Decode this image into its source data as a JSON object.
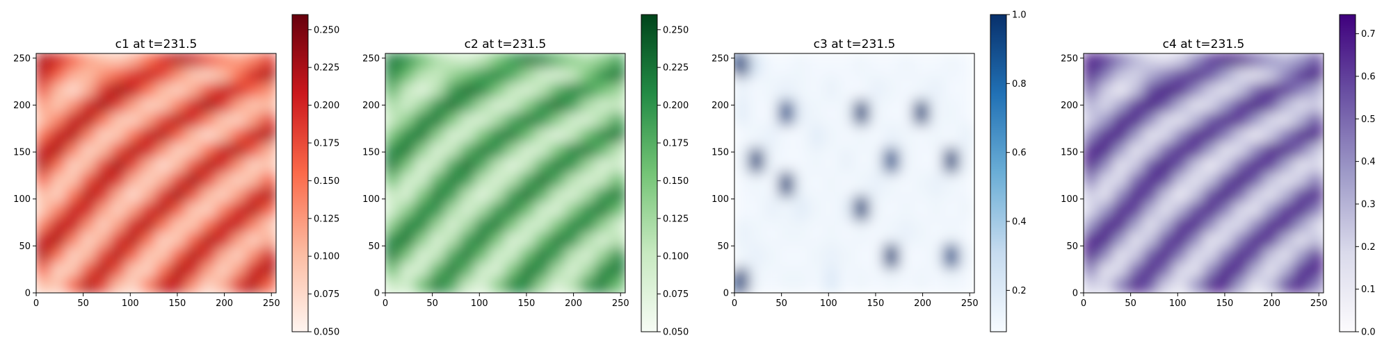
{
  "chart_data": [
    {
      "type": "heatmap",
      "title": "c1 at t=231.5",
      "colormap": "Reds",
      "colors": [
        "#fff5f0",
        "#fcbba1",
        "#fb6a4a",
        "#cb181d",
        "#67000d"
      ],
      "xlim": [
        0,
        255
      ],
      "ylim": [
        0,
        255
      ],
      "x_ticks": [
        0,
        50,
        100,
        150,
        200,
        250
      ],
      "y_ticks": [
        0,
        50,
        100,
        150,
        200,
        250
      ],
      "colorbar": {
        "range": [
          0.05,
          0.26
        ],
        "ticks": [
          0.05,
          0.075,
          0.1,
          0.125,
          0.15,
          0.175,
          0.2,
          0.225,
          0.25
        ],
        "tick_labels": [
          "0.050",
          "0.075",
          "0.100",
          "0.125",
          "0.150",
          "0.175",
          "0.200",
          "0.225",
          "0.250"
        ]
      },
      "values": [
        [
          0.22,
          0.2,
          0.16,
          0.12,
          0.1,
          0.09,
          0.11,
          0.15,
          0.19,
          0.22,
          0.21,
          0.17,
          0.14,
          0.12,
          0.14,
          0.18
        ],
        [
          0.21,
          0.16,
          0.11,
          0.1,
          0.13,
          0.16,
          0.19,
          0.21,
          0.18,
          0.13,
          0.09,
          0.08,
          0.1,
          0.15,
          0.2,
          0.22
        ],
        [
          0.17,
          0.1,
          0.07,
          0.11,
          0.19,
          0.23,
          0.21,
          0.15,
          0.1,
          0.08,
          0.11,
          0.17,
          0.21,
          0.2,
          0.16,
          0.13
        ],
        [
          0.12,
          0.09,
          0.13,
          0.2,
          0.23,
          0.18,
          0.12,
          0.08,
          0.09,
          0.14,
          0.2,
          0.23,
          0.19,
          0.12,
          0.09,
          0.1
        ],
        [
          0.1,
          0.14,
          0.21,
          0.22,
          0.15,
          0.09,
          0.08,
          0.12,
          0.18,
          0.22,
          0.2,
          0.14,
          0.09,
          0.08,
          0.12,
          0.18
        ],
        [
          0.15,
          0.21,
          0.22,
          0.14,
          0.08,
          0.09,
          0.15,
          0.21,
          0.22,
          0.16,
          0.1,
          0.07,
          0.1,
          0.16,
          0.21,
          0.22
        ],
        [
          0.21,
          0.22,
          0.14,
          0.08,
          0.1,
          0.17,
          0.22,
          0.2,
          0.13,
          0.08,
          0.09,
          0.15,
          0.21,
          0.22,
          0.17,
          0.11
        ],
        [
          0.22,
          0.15,
          0.08,
          0.1,
          0.18,
          0.23,
          0.18,
          0.11,
          0.07,
          0.1,
          0.17,
          0.22,
          0.2,
          0.13,
          0.08,
          0.09
        ],
        [
          0.16,
          0.09,
          0.09,
          0.17,
          0.22,
          0.19,
          0.11,
          0.08,
          0.11,
          0.18,
          0.23,
          0.18,
          0.11,
          0.08,
          0.1,
          0.16
        ],
        [
          0.1,
          0.08,
          0.15,
          0.22,
          0.19,
          0.11,
          0.07,
          0.11,
          0.19,
          0.23,
          0.17,
          0.1,
          0.08,
          0.12,
          0.19,
          0.22
        ],
        [
          0.09,
          0.14,
          0.21,
          0.2,
          0.12,
          0.08,
          0.12,
          0.19,
          0.22,
          0.16,
          0.09,
          0.08,
          0.14,
          0.2,
          0.22,
          0.16
        ],
        [
          0.14,
          0.21,
          0.21,
          0.13,
          0.08,
          0.12,
          0.2,
          0.22,
          0.15,
          0.09,
          0.09,
          0.15,
          0.21,
          0.21,
          0.14,
          0.09
        ],
        [
          0.21,
          0.22,
          0.14,
          0.08,
          0.11,
          0.19,
          0.22,
          0.15,
          0.08,
          0.09,
          0.16,
          0.22,
          0.2,
          0.12,
          0.08,
          0.11
        ],
        [
          0.22,
          0.15,
          0.08,
          0.1,
          0.18,
          0.22,
          0.16,
          0.09,
          0.09,
          0.16,
          0.22,
          0.19,
          0.11,
          0.08,
          0.13,
          0.2
        ],
        [
          0.16,
          0.08,
          0.09,
          0.17,
          0.22,
          0.17,
          0.09,
          0.08,
          0.15,
          0.22,
          0.2,
          0.12,
          0.08,
          0.12,
          0.2,
          0.22
        ],
        [
          0.1,
          0.09,
          0.16,
          0.22,
          0.18,
          0.1,
          0.08,
          0.14,
          0.21,
          0.21,
          0.13,
          0.08,
          0.11,
          0.19,
          0.22,
          0.16
        ]
      ]
    },
    {
      "type": "heatmap",
      "title": "c2 at t=231.5",
      "colormap": "Greens",
      "colors": [
        "#f7fcf5",
        "#c7e9c0",
        "#74c476",
        "#238b45",
        "#00441b"
      ],
      "xlim": [
        0,
        255
      ],
      "ylim": [
        0,
        255
      ],
      "x_ticks": [
        0,
        50,
        100,
        150,
        200,
        250
      ],
      "y_ticks": [
        0,
        50,
        100,
        150,
        200,
        250
      ],
      "colorbar": {
        "range": [
          0.05,
          0.26
        ],
        "ticks": [
          0.05,
          0.075,
          0.1,
          0.125,
          0.15,
          0.175,
          0.2,
          0.225,
          0.25
        ],
        "tick_labels": [
          "0.050",
          "0.075",
          "0.100",
          "0.125",
          "0.150",
          "0.175",
          "0.200",
          "0.225",
          "0.250"
        ]
      },
      "values": [
        [
          0.22,
          0.2,
          0.16,
          0.12,
          0.1,
          0.09,
          0.11,
          0.15,
          0.19,
          0.22,
          0.21,
          0.17,
          0.14,
          0.12,
          0.14,
          0.18
        ],
        [
          0.21,
          0.16,
          0.11,
          0.1,
          0.13,
          0.16,
          0.19,
          0.21,
          0.18,
          0.13,
          0.09,
          0.08,
          0.1,
          0.15,
          0.2,
          0.22
        ],
        [
          0.17,
          0.1,
          0.07,
          0.11,
          0.19,
          0.23,
          0.21,
          0.15,
          0.1,
          0.08,
          0.11,
          0.17,
          0.21,
          0.2,
          0.16,
          0.13
        ],
        [
          0.12,
          0.09,
          0.13,
          0.2,
          0.23,
          0.18,
          0.12,
          0.08,
          0.09,
          0.14,
          0.2,
          0.23,
          0.19,
          0.12,
          0.09,
          0.1
        ],
        [
          0.1,
          0.14,
          0.21,
          0.22,
          0.15,
          0.09,
          0.08,
          0.12,
          0.18,
          0.22,
          0.2,
          0.14,
          0.09,
          0.08,
          0.12,
          0.18
        ],
        [
          0.15,
          0.21,
          0.22,
          0.14,
          0.08,
          0.09,
          0.15,
          0.21,
          0.22,
          0.16,
          0.1,
          0.07,
          0.1,
          0.16,
          0.21,
          0.22
        ],
        [
          0.21,
          0.22,
          0.14,
          0.08,
          0.1,
          0.17,
          0.22,
          0.2,
          0.13,
          0.08,
          0.09,
          0.15,
          0.21,
          0.22,
          0.17,
          0.11
        ],
        [
          0.22,
          0.15,
          0.08,
          0.1,
          0.18,
          0.23,
          0.18,
          0.11,
          0.07,
          0.1,
          0.17,
          0.22,
          0.2,
          0.13,
          0.08,
          0.09
        ],
        [
          0.16,
          0.09,
          0.09,
          0.17,
          0.22,
          0.19,
          0.11,
          0.08,
          0.11,
          0.18,
          0.23,
          0.18,
          0.11,
          0.08,
          0.1,
          0.16
        ],
        [
          0.1,
          0.08,
          0.15,
          0.22,
          0.19,
          0.11,
          0.07,
          0.11,
          0.19,
          0.23,
          0.17,
          0.1,
          0.08,
          0.12,
          0.19,
          0.22
        ],
        [
          0.09,
          0.14,
          0.21,
          0.2,
          0.12,
          0.08,
          0.12,
          0.19,
          0.22,
          0.16,
          0.09,
          0.08,
          0.14,
          0.2,
          0.22,
          0.16
        ],
        [
          0.14,
          0.21,
          0.21,
          0.13,
          0.08,
          0.12,
          0.2,
          0.22,
          0.15,
          0.09,
          0.09,
          0.15,
          0.21,
          0.21,
          0.14,
          0.09
        ],
        [
          0.21,
          0.22,
          0.14,
          0.08,
          0.11,
          0.19,
          0.22,
          0.15,
          0.08,
          0.09,
          0.16,
          0.22,
          0.2,
          0.12,
          0.08,
          0.11
        ],
        [
          0.22,
          0.15,
          0.08,
          0.1,
          0.18,
          0.22,
          0.16,
          0.09,
          0.09,
          0.16,
          0.22,
          0.19,
          0.11,
          0.08,
          0.13,
          0.2
        ],
        [
          0.16,
          0.08,
          0.09,
          0.17,
          0.22,
          0.17,
          0.09,
          0.08,
          0.15,
          0.22,
          0.2,
          0.12,
          0.08,
          0.12,
          0.2,
          0.22
        ],
        [
          0.1,
          0.09,
          0.16,
          0.22,
          0.18,
          0.1,
          0.08,
          0.14,
          0.21,
          0.21,
          0.13,
          0.08,
          0.11,
          0.19,
          0.22,
          0.16
        ]
      ]
    },
    {
      "type": "heatmap",
      "title": "c3 at t=231.5",
      "colormap": "Blues",
      "colors": [
        "#f7fbff",
        "#c6dbef",
        "#6baed6",
        "#2171b5",
        "#08306b"
      ],
      "xlim": [
        0,
        255
      ],
      "ylim": [
        0,
        255
      ],
      "x_ticks": [
        0,
        50,
        100,
        150,
        200,
        250
      ],
      "y_ticks": [
        0,
        50,
        100,
        150,
        200,
        250
      ],
      "colorbar": {
        "range": [
          0.08,
          1.0
        ],
        "ticks": [
          0.2,
          0.4,
          0.6,
          0.8,
          1.0
        ],
        "tick_labels": [
          "0.2",
          "0.4",
          "0.6",
          "0.8",
          "1.0"
        ]
      },
      "values": [
        [
          0.95,
          0.2,
          0.1,
          0.1,
          0.12,
          0.1,
          0.1,
          0.1,
          0.12,
          0.1,
          0.1,
          0.12,
          0.1,
          0.1,
          0.12,
          0.1
        ],
        [
          0.15,
          0.1,
          0.12,
          0.15,
          0.12,
          0.1,
          0.15,
          0.1,
          0.1,
          0.15,
          0.12,
          0.1,
          0.12,
          0.15,
          0.1,
          0.1
        ],
        [
          0.18,
          0.1,
          0.1,
          0.9,
          0.15,
          0.12,
          0.1,
          0.12,
          0.95,
          0.12,
          0.1,
          0.1,
          0.95,
          0.12,
          0.12,
          0.1
        ],
        [
          0.1,
          0.12,
          0.15,
          0.1,
          0.1,
          0.18,
          0.12,
          0.1,
          0.12,
          0.1,
          0.15,
          0.12,
          0.1,
          0.12,
          0.1,
          0.15
        ],
        [
          0.12,
          0.95,
          0.12,
          0.1,
          0.1,
          0.12,
          0.1,
          0.15,
          0.1,
          0.12,
          0.9,
          0.12,
          0.1,
          0.1,
          0.95,
          0.12
        ],
        [
          0.1,
          0.12,
          0.1,
          0.95,
          0.12,
          0.1,
          0.12,
          0.1,
          0.12,
          0.15,
          0.12,
          0.1,
          0.12,
          0.15,
          0.12,
          0.1
        ],
        [
          0.1,
          0.1,
          0.15,
          0.12,
          0.18,
          0.12,
          0.1,
          0.15,
          0.95,
          0.12,
          0.1,
          0.12,
          0.1,
          0.12,
          0.1,
          0.12
        ],
        [
          0.15,
          0.12,
          0.1,
          0.12,
          0.12,
          0.1,
          0.12,
          0.1,
          0.12,
          0.1,
          0.12,
          0.15,
          0.12,
          0.1,
          0.12,
          0.1
        ],
        [
          0.12,
          0.15,
          0.12,
          0.1,
          0.1,
          0.12,
          0.15,
          0.12,
          0.1,
          0.1,
          0.95,
          0.1,
          0.1,
          0.12,
          0.9,
          0.12
        ],
        [
          0.95,
          0.12,
          0.1,
          0.12,
          0.12,
          0.1,
          0.2,
          0.1,
          0.12,
          0.1,
          0.12,
          0.1,
          0.12,
          0.1,
          0.12,
          0.1
        ]
      ]
    },
    {
      "type": "heatmap",
      "title": "c4 at t=231.5",
      "colormap": "Purples",
      "colors": [
        "#fcfbfd",
        "#dadaeb",
        "#9e9ac8",
        "#6a51a3",
        "#3f007d"
      ],
      "xlim": [
        0,
        255
      ],
      "ylim": [
        0,
        255
      ],
      "x_ticks": [
        0,
        50,
        100,
        150,
        200,
        250
      ],
      "y_ticks": [
        0,
        50,
        100,
        150,
        200,
        250
      ],
      "colorbar": {
        "range": [
          0.0,
          0.745
        ],
        "ticks": [
          0.0,
          0.1,
          0.2,
          0.3,
          0.4,
          0.5,
          0.6,
          0.7
        ],
        "tick_labels": [
          "0.0",
          "0.1",
          "0.2",
          "0.3",
          "0.4",
          "0.5",
          "0.6",
          "0.7"
        ]
      },
      "values": [
        [
          0.7,
          0.62,
          0.45,
          0.3,
          0.2,
          0.15,
          0.22,
          0.4,
          0.6,
          0.7,
          0.66,
          0.5,
          0.38,
          0.3,
          0.38,
          0.55
        ],
        [
          0.66,
          0.45,
          0.25,
          0.2,
          0.32,
          0.45,
          0.58,
          0.66,
          0.55,
          0.35,
          0.18,
          0.12,
          0.22,
          0.42,
          0.62,
          0.7
        ],
        [
          0.5,
          0.22,
          0.06,
          0.25,
          0.58,
          0.72,
          0.65,
          0.42,
          0.22,
          0.12,
          0.25,
          0.5,
          0.66,
          0.62,
          0.45,
          0.32
        ],
        [
          0.3,
          0.18,
          0.35,
          0.62,
          0.72,
          0.55,
          0.3,
          0.12,
          0.18,
          0.38,
          0.62,
          0.72,
          0.58,
          0.3,
          0.16,
          0.22
        ],
        [
          0.22,
          0.38,
          0.66,
          0.68,
          0.42,
          0.18,
          0.12,
          0.3,
          0.55,
          0.68,
          0.62,
          0.38,
          0.18,
          0.12,
          0.3,
          0.55
        ],
        [
          0.42,
          0.66,
          0.68,
          0.38,
          0.12,
          0.18,
          0.42,
          0.66,
          0.68,
          0.45,
          0.22,
          0.06,
          0.22,
          0.45,
          0.66,
          0.68
        ],
        [
          0.66,
          0.68,
          0.38,
          0.12,
          0.22,
          0.5,
          0.68,
          0.62,
          0.35,
          0.12,
          0.18,
          0.42,
          0.66,
          0.68,
          0.5,
          0.25
        ],
        [
          0.68,
          0.42,
          0.12,
          0.22,
          0.55,
          0.72,
          0.55,
          0.25,
          0.06,
          0.22,
          0.5,
          0.68,
          0.62,
          0.35,
          0.12,
          0.18
        ],
        [
          0.45,
          0.18,
          0.18,
          0.5,
          0.68,
          0.58,
          0.25,
          0.12,
          0.25,
          0.55,
          0.72,
          0.55,
          0.25,
          0.12,
          0.22,
          0.45
        ],
        [
          0.22,
          0.12,
          0.42,
          0.68,
          0.58,
          0.25,
          0.06,
          0.25,
          0.58,
          0.72,
          0.5,
          0.22,
          0.12,
          0.3,
          0.58,
          0.68
        ],
        [
          0.18,
          0.38,
          0.66,
          0.62,
          0.3,
          0.12,
          0.3,
          0.58,
          0.68,
          0.45,
          0.18,
          0.12,
          0.38,
          0.62,
          0.68,
          0.45
        ],
        [
          0.38,
          0.66,
          0.66,
          0.35,
          0.12,
          0.3,
          0.62,
          0.68,
          0.42,
          0.18,
          0.18,
          0.42,
          0.66,
          0.66,
          0.38,
          0.18
        ],
        [
          0.66,
          0.68,
          0.38,
          0.12,
          0.25,
          0.58,
          0.68,
          0.42,
          0.12,
          0.18,
          0.45,
          0.68,
          0.62,
          0.3,
          0.12,
          0.25
        ],
        [
          0.68,
          0.42,
          0.12,
          0.22,
          0.55,
          0.68,
          0.45,
          0.18,
          0.18,
          0.45,
          0.68,
          0.58,
          0.25,
          0.12,
          0.35,
          0.62
        ],
        [
          0.45,
          0.12,
          0.18,
          0.5,
          0.68,
          0.5,
          0.18,
          0.12,
          0.42,
          0.68,
          0.62,
          0.3,
          0.12,
          0.3,
          0.62,
          0.68
        ],
        [
          0.22,
          0.18,
          0.45,
          0.68,
          0.55,
          0.22,
          0.12,
          0.38,
          0.66,
          0.66,
          0.35,
          0.12,
          0.25,
          0.58,
          0.68,
          0.45
        ]
      ]
    }
  ]
}
